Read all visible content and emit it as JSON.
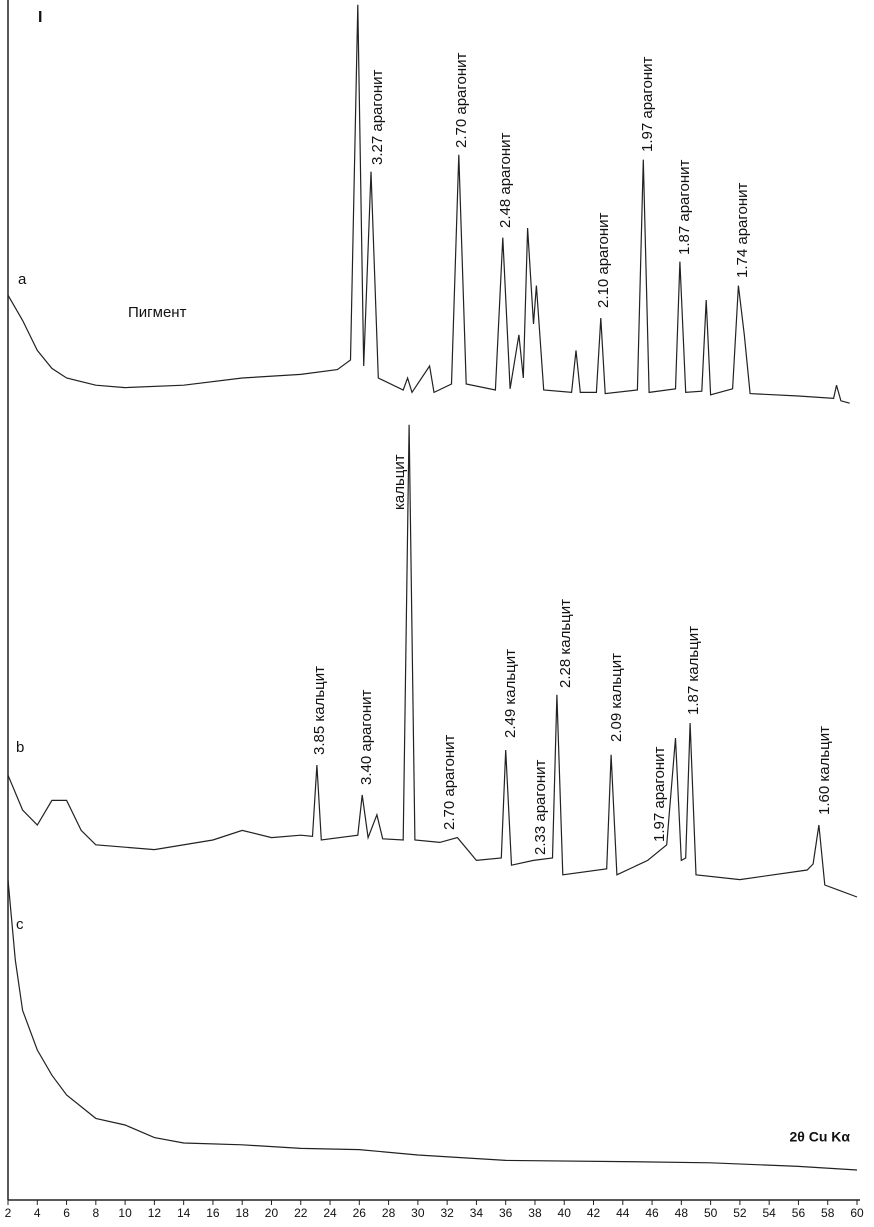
{
  "chart_data": {
    "type": "line",
    "corner_label": "I",
    "annotation_text": "Пигмент",
    "x_label": "2θ Cu Kα",
    "xlim": [
      2,
      60
    ],
    "xticks": [
      2,
      4,
      6,
      8,
      10,
      12,
      14,
      16,
      18,
      20,
      22,
      24,
      26,
      28,
      30,
      32,
      34,
      36,
      38,
      40,
      42,
      44,
      46,
      48,
      50,
      52,
      54,
      56,
      58,
      60
    ],
    "ylim": [
      0,
      100
    ],
    "series": [
      {
        "name": "a",
        "color": "#222222",
        "x": [
          2,
          3,
          4,
          5,
          6,
          8,
          10,
          14,
          18,
          22,
          24.5,
          25.4,
          25.9,
          26.3,
          26.8,
          27.3,
          29,
          29.3,
          29.6,
          30.8,
          31.1,
          32.3,
          32.8,
          33.3,
          35.3,
          35.8,
          36.3,
          36.9,
          37.2,
          37.5,
          37.9,
          38.1,
          38.6,
          40.5,
          40.8,
          41.1,
          42.2,
          42.5,
          42.8,
          45,
          45.4,
          45.8,
          47.6,
          47.9,
          48.3,
          49.4,
          49.7,
          50,
          51.5,
          51.9,
          52.3,
          52.7,
          56,
          58.4,
          58.6,
          58.9,
          59.5
        ],
        "values": [
          75.4,
          73.3,
          70.8,
          69.3,
          68.5,
          67.9,
          67.7,
          67.9,
          68.5,
          68.8,
          69.2,
          70,
          99.6,
          69.5,
          85.7,
          68.5,
          67.5,
          68.5,
          67.3,
          69.5,
          67.3,
          68,
          87.1,
          68,
          67.5,
          80.2,
          67.6,
          72.1,
          68.5,
          81,
          73,
          76.2,
          67.5,
          67.3,
          70.8,
          67.3,
          67.3,
          73.5,
          67.2,
          67.5,
          86.7,
          67.3,
          67.6,
          78.2,
          67.3,
          67.4,
          75,
          67.1,
          67.6,
          76.2,
          72.1,
          67.2,
          67,
          66.8,
          67.9,
          66.6,
          66.4
        ],
        "annotations": [
          "3.27 арагонит",
          "2.70 арагонит",
          "2.48 арагонит",
          "2.10 арагонит",
          "1.97 арагонит",
          "1.87 арагонит",
          "1.74 арагонит"
        ]
      },
      {
        "name": "b",
        "color": "#222222",
        "x": [
          2,
          3,
          4,
          5,
          6,
          7,
          8,
          12,
          16,
          18,
          20,
          22,
          22.8,
          23.1,
          23.4,
          25.9,
          26.2,
          26.6,
          27.2,
          27.6,
          29,
          29.4,
          29.8,
          31.5,
          32.7,
          34,
          35.7,
          36,
          36.4,
          37.9,
          39.2,
          39.5,
          39.9,
          42.9,
          43.2,
          43.6,
          45.7,
          47,
          47.6,
          48,
          48.3,
          48.6,
          49,
          52,
          56.6,
          57,
          57.4,
          57.8,
          60
        ],
        "values": [
          35.4,
          32.5,
          31.25,
          33.3,
          33.3,
          30.8,
          29.6,
          29.2,
          30,
          30.8,
          30.2,
          30.4,
          30.3,
          36.25,
          30,
          30.4,
          33.75,
          30.2,
          32.1,
          30.1,
          30,
          64.6,
          30,
          29.8,
          30.2,
          28.3,
          28.5,
          37.5,
          27.9,
          28.3,
          28.5,
          42.1,
          27.1,
          27.6,
          37.1,
          27.1,
          28.3,
          29.6,
          38.5,
          28.3,
          28.5,
          39.75,
          27.1,
          26.7,
          27.5,
          28,
          31.25,
          26.25,
          25.25
        ],
        "annotations": [
          "кальцит",
          "3.85 кальцит",
          "3.40 арагонит",
          "2.70 арагонит",
          "2.49 кальцит",
          "2.33 арагонит",
          "2.28 кальцит",
          "2.09 кальцит",
          "1.97 арагонит",
          "1.87 кальцит",
          "1.60 кальцит"
        ]
      },
      {
        "name": "c",
        "color": "#222222",
        "x": [
          2,
          2.5,
          3,
          4,
          5,
          6,
          8,
          10,
          12,
          14,
          18,
          22,
          26,
          30,
          36,
          44,
          50,
          56,
          60
        ],
        "values": [
          26.7,
          20,
          15.8,
          12.5,
          10.4,
          8.75,
          6.8,
          6.25,
          5.2,
          4.75,
          4.6,
          4.3,
          4.2,
          3.75,
          3.3,
          3.2,
          3.1,
          2.8,
          2.5
        ],
        "annotations": []
      }
    ]
  }
}
